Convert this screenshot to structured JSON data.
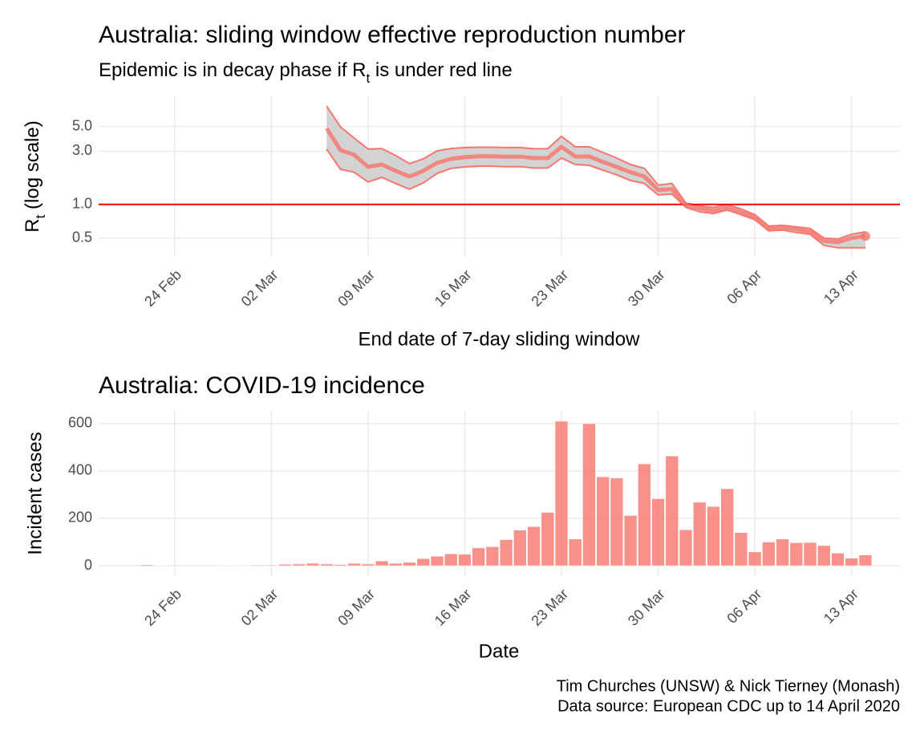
{
  "chart_data": [
    {
      "type": "line",
      "title": "Australia: sliding window effective reproduction number",
      "subtitle": [
        "Epidemic is in decay phase if R",
        "t",
        " is under red line"
      ],
      "ylabel": [
        "R",
        "t",
        " (log scale)"
      ],
      "xlabel": "End date of 7-day sliding window",
      "log_y": true,
      "ylim": [
        0.34,
        9.3
      ],
      "yticks": [
        0.5,
        {
          "value": 1,
          "label": "1.0"
        },
        {
          "value": 3,
          "label": "3.0"
        },
        {
          "value": 5,
          "label": "5.0"
        }
      ],
      "grid": true,
      "color": "#f8766d",
      "band_color": "#d3d3d3",
      "hline": 1,
      "hline_color": "#ff0000",
      "categories": [
        null,
        null,
        null,
        null,
        null,
        "24 Feb",
        null,
        null,
        null,
        null,
        null,
        null,
        "02 Mar",
        null,
        null,
        null,
        null,
        null,
        null,
        "09 Mar",
        null,
        null,
        null,
        null,
        null,
        null,
        "16 Mar",
        null,
        null,
        null,
        null,
        null,
        null,
        "23 Mar",
        null,
        null,
        null,
        null,
        null,
        null,
        "30 Mar",
        null,
        null,
        null,
        null,
        null,
        null,
        "06 Apr",
        null,
        null,
        null,
        null,
        null,
        null,
        "13 Apr",
        null,
        null,
        null
      ],
      "values": [
        null,
        null,
        null,
        null,
        null,
        null,
        null,
        null,
        null,
        null,
        null,
        null,
        null,
        null,
        null,
        null,
        4.8,
        3.07,
        2.78,
        2.17,
        2.28,
        2.0,
        1.78,
        2.0,
        2.36,
        2.56,
        2.65,
        2.7,
        2.7,
        2.68,
        2.68,
        2.6,
        2.6,
        3.28,
        2.69,
        2.69,
        2.4,
        2.17,
        1.94,
        1.78,
        1.35,
        1.37,
        0.98,
        0.92,
        0.88,
        0.94,
        0.85,
        0.77,
        0.61,
        0.62,
        0.6,
        0.57,
        0.47,
        0.46,
        0.5,
        0.52,
        null,
        null
      ],
      "upper": [
        null,
        null,
        null,
        null,
        null,
        null,
        null,
        null,
        null,
        null,
        null,
        null,
        null,
        null,
        null,
        null,
        7.6,
        4.95,
        3.93,
        3.13,
        3.17,
        2.74,
        2.32,
        2.56,
        3.02,
        3.17,
        3.23,
        3.25,
        3.25,
        3.23,
        3.23,
        3.15,
        3.15,
        4.07,
        3.28,
        3.28,
        2.92,
        2.6,
        2.28,
        2.1,
        1.49,
        1.54,
        1.03,
        0.97,
        0.94,
        1.0,
        0.91,
        0.81,
        0.64,
        0.65,
        0.63,
        0.61,
        0.5,
        0.49,
        0.54,
        0.57,
        null,
        null
      ],
      "lower": [
        null,
        null,
        null,
        null,
        null,
        null,
        null,
        null,
        null,
        null,
        null,
        null,
        null,
        null,
        null,
        null,
        3.13,
        2.07,
        1.94,
        1.59,
        1.75,
        1.54,
        1.37,
        1.56,
        1.9,
        2.1,
        2.17,
        2.2,
        2.2,
        2.18,
        2.18,
        2.12,
        2.12,
        2.6,
        2.28,
        2.24,
        2.03,
        1.84,
        1.64,
        1.54,
        1.22,
        1.24,
        0.94,
        0.86,
        0.83,
        0.89,
        0.81,
        0.73,
        0.58,
        0.59,
        0.56,
        0.54,
        0.43,
        0.41,
        0.41,
        0.41,
        null,
        null
      ]
    },
    {
      "type": "bar",
      "title": "Australia: COVID-19 incidence",
      "ylabel": "Incident cases",
      "xlabel": "Date",
      "ylim": [
        -44,
        654
      ],
      "yticks": [
        0,
        200,
        400,
        600
      ],
      "grid": true,
      "color": "#f8766d",
      "categories": [
        null,
        null,
        null,
        null,
        null,
        "24 Feb",
        null,
        null,
        null,
        null,
        null,
        null,
        "02 Mar",
        null,
        null,
        null,
        null,
        null,
        null,
        "09 Mar",
        null,
        null,
        null,
        null,
        null,
        null,
        "16 Mar",
        null,
        null,
        null,
        null,
        null,
        null,
        "23 Mar",
        null,
        null,
        null,
        null,
        null,
        null,
        "30 Mar",
        null,
        null,
        null,
        null,
        null,
        null,
        "06 Apr",
        null,
        null,
        null,
        null,
        null,
        null,
        "13 Apr",
        null,
        null,
        null
      ],
      "values": [
        null,
        null,
        null,
        4,
        1,
        0,
        0,
        0,
        2,
        1,
        2,
        3,
        3,
        6,
        7,
        10,
        7,
        5,
        10,
        7,
        20,
        10,
        14,
        30,
        40,
        50,
        48,
        75,
        80,
        110,
        150,
        165,
        225,
        610,
        113,
        600,
        375,
        370,
        212,
        430,
        283,
        463,
        152,
        268,
        250,
        325,
        140,
        58,
        100,
        113,
        97,
        98,
        85,
        53,
        32,
        45,
        null,
        null
      ]
    }
  ],
  "caption": [
    "Tim Churches (UNSW) & Nick Tierney (Monash)",
    "Data source: European CDC up to 14 April 2020"
  ]
}
